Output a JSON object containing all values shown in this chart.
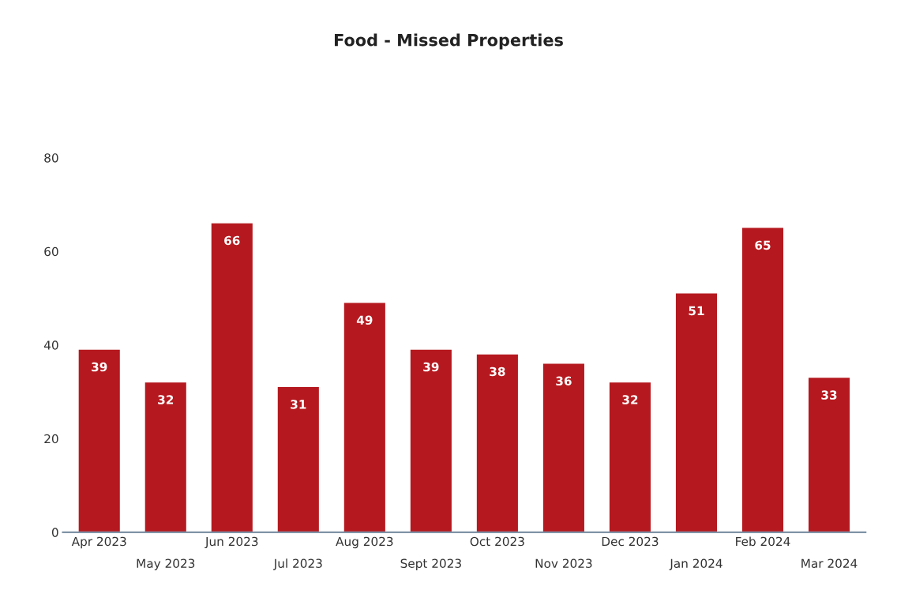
{
  "chart_data": {
    "type": "bar",
    "title": "Food - Missed Properties",
    "categories": [
      "Apr 2023",
      "May 2023",
      "Jun 2023",
      "Jul 2023",
      "Aug 2023",
      "Sept 2023",
      "Oct 2023",
      "Nov 2023",
      "Dec 2023",
      "Jan 2024",
      "Feb 2024",
      "Mar 2024"
    ],
    "values": [
      39,
      32,
      66,
      31,
      49,
      39,
      38,
      36,
      32,
      51,
      65,
      33
    ],
    "color": "#b5191f",
    "ylim": [
      0,
      80
    ],
    "yticks": [
      0,
      20,
      40,
      60,
      80
    ],
    "grid": false,
    "data_labels": true
  }
}
